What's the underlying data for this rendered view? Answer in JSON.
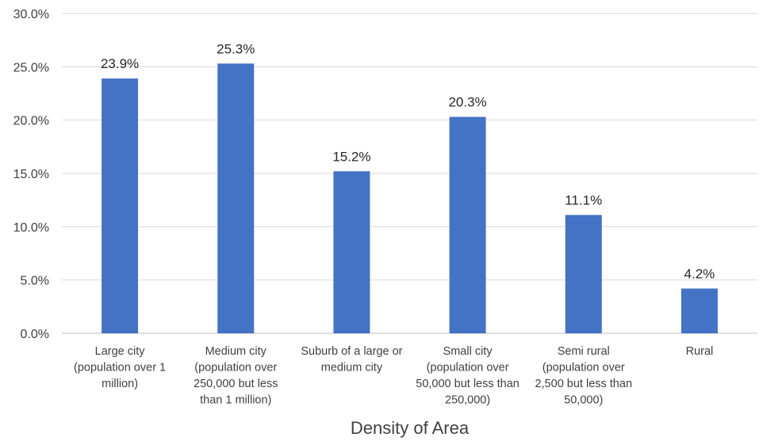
{
  "chart_data": {
    "type": "bar",
    "title": "",
    "xlabel": "Density of Area",
    "ylabel": "",
    "ylim": [
      0,
      30
    ],
    "yticks": [
      0,
      5,
      10,
      15,
      20,
      25,
      30
    ],
    "ytick_labels": [
      "0.0%",
      "5.0%",
      "10.0%",
      "15.0%",
      "20.0%",
      "25.0%",
      "30.0%"
    ],
    "categories": [
      [
        "Large city",
        "(population over 1",
        "million)"
      ],
      [
        "Medium city",
        "(population over",
        "250,000 but less",
        "than 1 million)"
      ],
      [
        "Suburb of a large or",
        "medium city"
      ],
      [
        "Small city",
        "(population over",
        "50,000 but less than",
        "250,000)"
      ],
      [
        "Semi rural",
        "(population over",
        "2,500 but less than",
        "50,000)"
      ],
      [
        "Rural"
      ]
    ],
    "values": [
      23.9,
      25.3,
      15.2,
      20.3,
      11.1,
      4.2
    ],
    "data_labels": [
      "23.9%",
      "25.3%",
      "15.2%",
      "20.3%",
      "11.1%",
      "4.2%"
    ],
    "grid": true,
    "legend": "none",
    "colors": {
      "bar": "#4472C4",
      "grid": "#D9D9D9",
      "axis": "#BFBFBF",
      "text": "#404040"
    }
  }
}
